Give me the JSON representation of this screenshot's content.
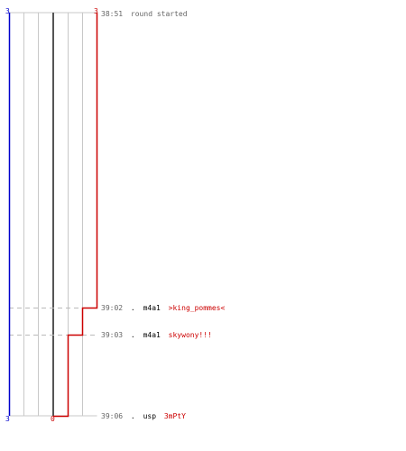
{
  "graph": {
    "top_left_score": "3",
    "top_right_score": "3",
    "bottom_left_score": "3",
    "bottom_right_score": "0",
    "colors": {
      "team_left": "#0000cc",
      "team_right": "#cc0000",
      "grid": "#c8c8c8",
      "center_line": "#555555",
      "guide": "#bbbbbb",
      "time": "#666666",
      "weapon": "#000000"
    }
  },
  "log": {
    "start": {
      "time": "38:51",
      "text": "round started"
    },
    "events": [
      {
        "time": "39:02",
        "bullet": ".",
        "weapon": "m4a1",
        "player": ">king_pommes<"
      },
      {
        "time": "39:03",
        "bullet": ".",
        "weapon": "m4a1",
        "player": "skywony!!!"
      },
      {
        "time": "39:06",
        "bullet": ".",
        "weapon": "usp",
        "player": "3mPtY"
      }
    ]
  }
}
